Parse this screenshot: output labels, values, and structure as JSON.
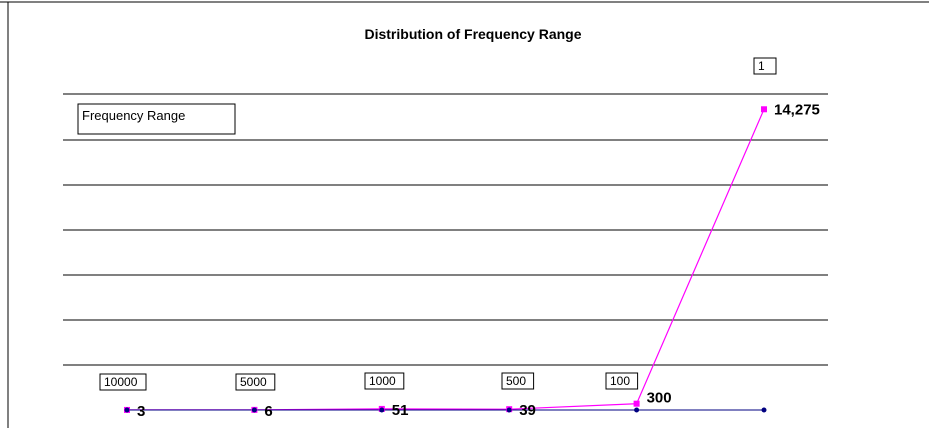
{
  "chart_data": {
    "type": "line",
    "title": "Distribution of Frequency Range",
    "legend": {
      "entry": "Frequency Range",
      "placement": "top-left"
    },
    "categories": [
      "10000",
      "5000",
      "1000",
      "500",
      "100",
      "1"
    ],
    "series": [
      {
        "name": "Frequency Range",
        "color": "#ff00ff",
        "values": [
          3,
          6,
          51,
          39,
          300,
          14275
        ],
        "data_labels": [
          "3",
          "6",
          "51",
          "39",
          "300",
          "14,275"
        ]
      },
      {
        "color": "#000080",
        "values": [
          0,
          0,
          0,
          0,
          0,
          0
        ]
      }
    ],
    "ylim": [
      0,
      15000
    ],
    "grid": true
  }
}
